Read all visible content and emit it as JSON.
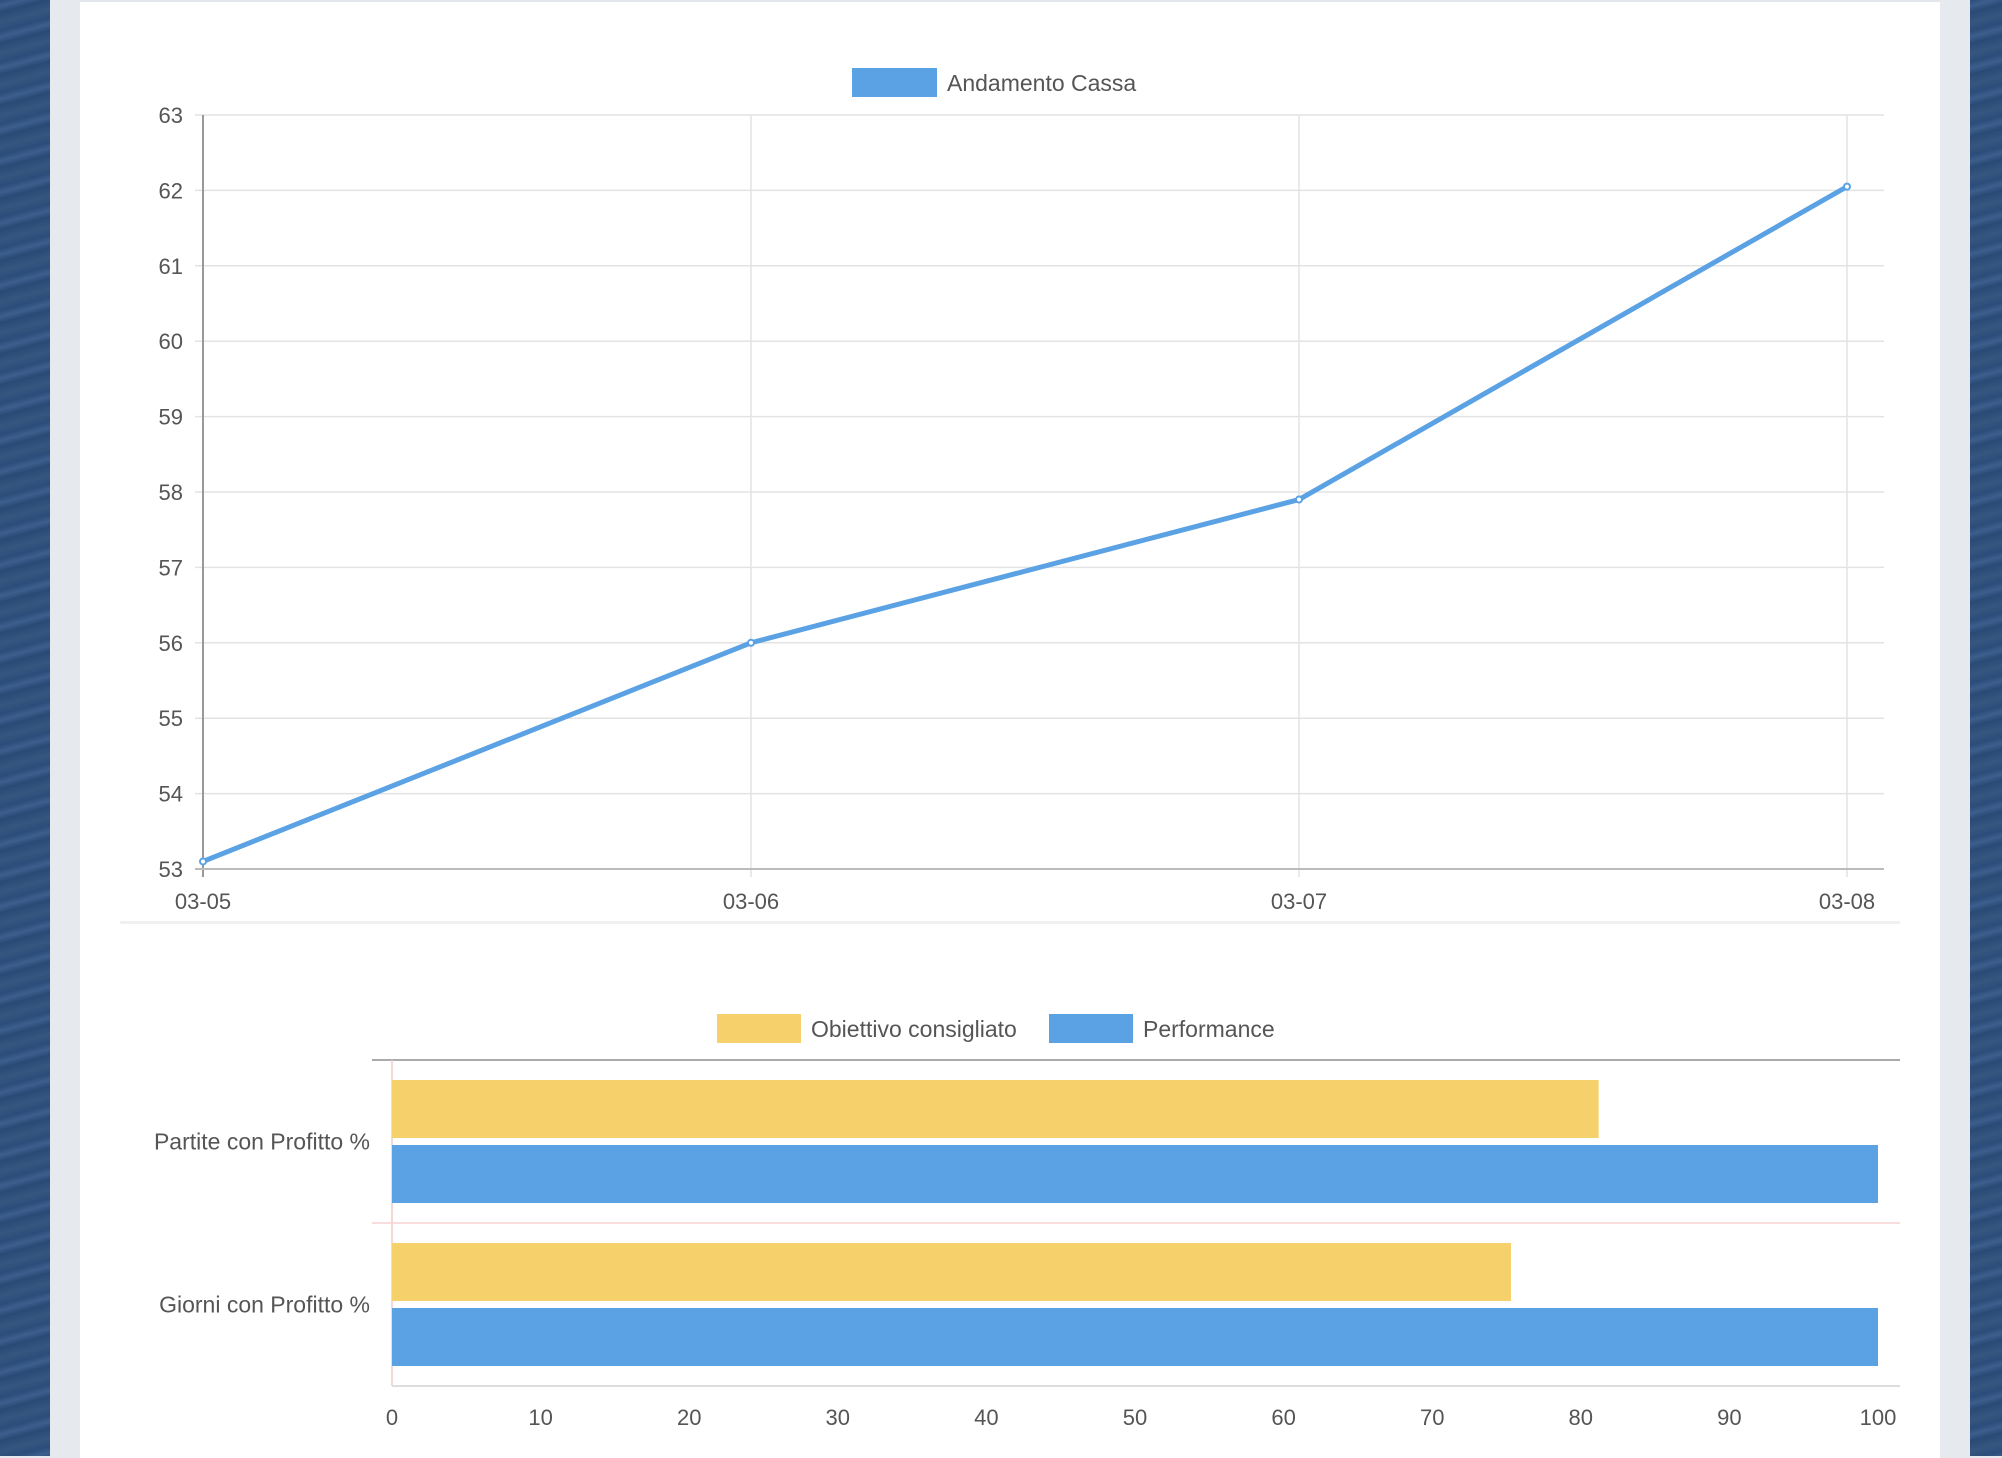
{
  "chart_data": [
    {
      "type": "line",
      "legend": [
        "Andamento Cassa"
      ],
      "categories": [
        "03-05",
        "03-06",
        "03-07",
        "03-08"
      ],
      "series": [
        {
          "name": "Andamento Cassa",
          "values": [
            53.1,
            56.0,
            57.9,
            62.05
          ],
          "color": "#5ba2e5"
        }
      ],
      "ylim": [
        53,
        63
      ],
      "yticks": [
        "53",
        "54",
        "55",
        "56",
        "57",
        "58",
        "59",
        "60",
        "61",
        "62",
        "63"
      ],
      "grid": true,
      "legend_position": "top-center",
      "title": "",
      "xlabel": "",
      "ylabel": ""
    },
    {
      "type": "bar",
      "orientation": "horizontal",
      "categories": [
        "Partite con Profitto %",
        "Giorni con Profitto %"
      ],
      "series": [
        {
          "name": "Obiettivo consigliato",
          "values": [
            81.2,
            75.3
          ],
          "color": "#f6d06b"
        },
        {
          "name": "Performance",
          "values": [
            100,
            100
          ],
          "color": "#5ba2e5"
        }
      ],
      "xlim": [
        0,
        100
      ],
      "xticks": [
        "0",
        "10",
        "20",
        "30",
        "40",
        "50",
        "60",
        "70",
        "80",
        "90",
        "100"
      ],
      "legend_position": "top-center",
      "title": "",
      "xlabel": "",
      "ylabel": ""
    }
  ]
}
